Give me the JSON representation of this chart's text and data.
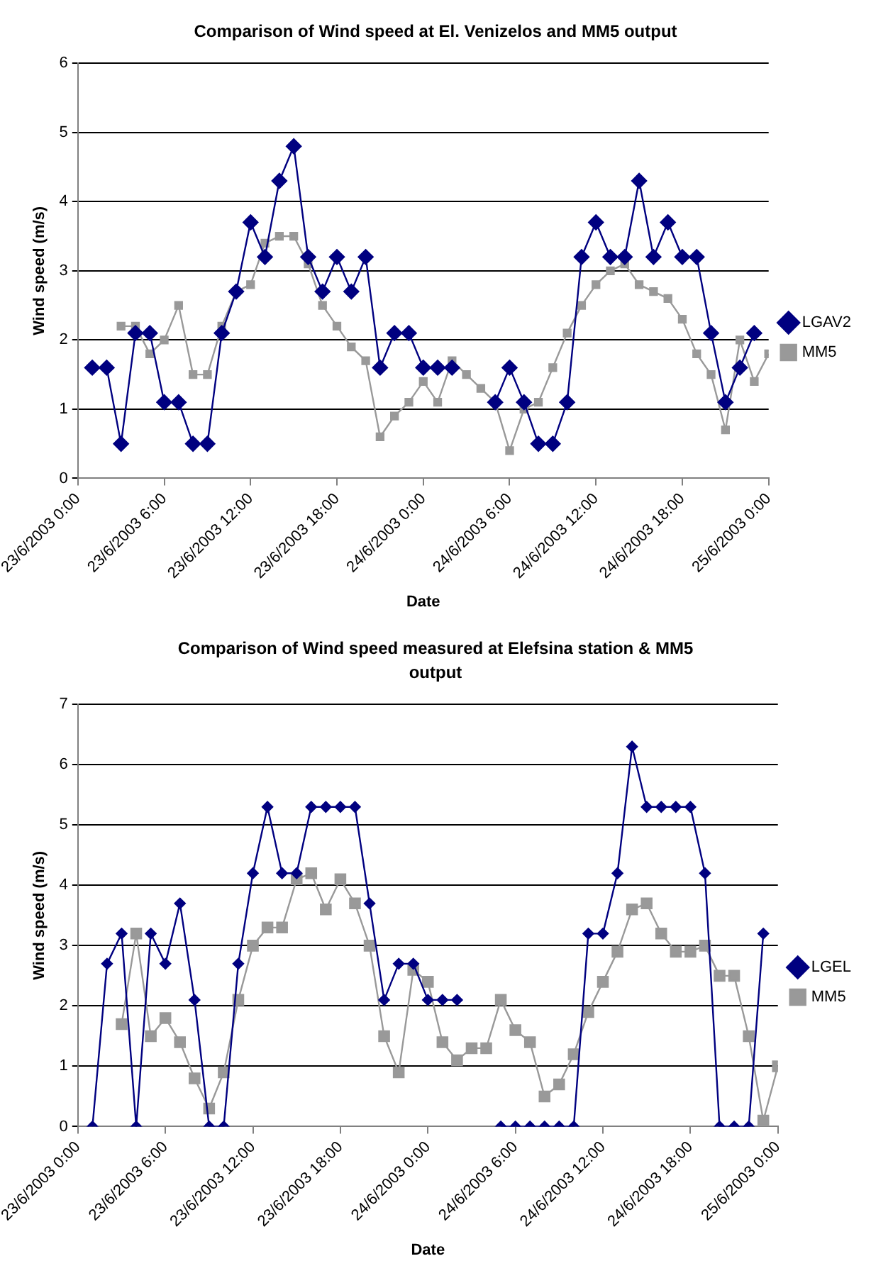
{
  "chart_data": [
    {
      "type": "line",
      "title": "Comparison of Wind speed at El. Venizelos and MM5 output",
      "xlabel": "Date",
      "ylabel": "Wind speed (m/s)",
      "x": [
        "2003-06-23T01:00",
        "2003-06-23T02:00",
        "2003-06-23T03:00",
        "2003-06-23T04:00",
        "2003-06-23T05:00",
        "2003-06-23T06:00",
        "2003-06-23T07:00",
        "2003-06-23T08:00",
        "2003-06-23T09:00",
        "2003-06-23T10:00",
        "2003-06-23T11:00",
        "2003-06-23T12:00",
        "2003-06-23T13:00",
        "2003-06-23T14:00",
        "2003-06-23T15:00",
        "2003-06-23T16:00",
        "2003-06-23T17:00",
        "2003-06-23T18:00",
        "2003-06-23T19:00",
        "2003-06-23T20:00",
        "2003-06-23T21:00",
        "2003-06-23T22:00",
        "2003-06-23T23:00",
        "2003-06-24T00:00",
        "2003-06-24T01:00",
        "2003-06-24T02:00",
        "2003-06-24T03:00",
        "2003-06-24T04:00",
        "2003-06-24T05:00",
        "2003-06-24T06:00",
        "2003-06-24T07:00",
        "2003-06-24T08:00",
        "2003-06-24T09:00",
        "2003-06-24T10:00",
        "2003-06-24T11:00",
        "2003-06-24T12:00",
        "2003-06-24T13:00",
        "2003-06-24T14:00",
        "2003-06-24T15:00",
        "2003-06-24T16:00",
        "2003-06-24T17:00",
        "2003-06-24T18:00",
        "2003-06-24T19:00",
        "2003-06-24T20:00",
        "2003-06-24T21:00",
        "2003-06-24T22:00",
        "2003-06-24T23:00",
        "2003-06-25T00:00"
      ],
      "xlim": [
        "2003-06-23T00:00",
        "2003-06-25T00:00"
      ],
      "xticks": [
        {
          "value": "2003-06-23T00:00",
          "label": "23/6/2003 0:00"
        },
        {
          "value": "2003-06-23T06:00",
          "label": "23/6/2003 6:00"
        },
        {
          "value": "2003-06-23T12:00",
          "label": "23/6/2003 12:00"
        },
        {
          "value": "2003-06-23T18:00",
          "label": "23/6/2003 18:00"
        },
        {
          "value": "2003-06-24T00:00",
          "label": "24/6/2003 0:00"
        },
        {
          "value": "2003-06-24T06:00",
          "label": "24/6/2003 6:00"
        },
        {
          "value": "2003-06-24T12:00",
          "label": "24/6/2003 12:00"
        },
        {
          "value": "2003-06-24T18:00",
          "label": "24/6/2003 18:00"
        },
        {
          "value": "2003-06-25T00:00",
          "label": "25/6/2003 0:00"
        }
      ],
      "ylim": [
        0,
        6
      ],
      "yticks": [
        0,
        1,
        2,
        3,
        4,
        5,
        6
      ],
      "grid": "y",
      "legend": "right",
      "series": [
        {
          "name": "LGAV2",
          "color": "#000080",
          "marker": "diamond",
          "values": [
            1.6,
            1.6,
            0.5,
            2.1,
            2.1,
            1.1,
            1.1,
            0.5,
            0.5,
            2.1,
            2.7,
            3.7,
            3.2,
            4.3,
            4.8,
            3.2,
            2.7,
            3.2,
            2.7,
            3.2,
            1.6,
            2.1,
            2.1,
            1.6,
            1.6,
            1.6,
            null,
            null,
            1.1,
            1.6,
            1.1,
            0.5,
            0.5,
            1.1,
            3.2,
            3.7,
            3.2,
            3.2,
            4.3,
            3.2,
            3.7,
            3.2,
            3.2,
            2.1,
            1.1,
            1.6,
            2.1,
            null
          ]
        },
        {
          "name": "MM5",
          "color": "#999999",
          "marker": "square",
          "values": [
            null,
            null,
            2.2,
            2.2,
            1.8,
            2.0,
            2.5,
            1.5,
            1.5,
            2.2,
            2.7,
            2.8,
            3.4,
            3.5,
            3.5,
            3.1,
            2.5,
            2.2,
            1.9,
            1.7,
            0.6,
            0.9,
            1.1,
            1.4,
            1.1,
            1.7,
            1.5,
            1.3,
            1.1,
            0.4,
            1.0,
            1.1,
            1.6,
            2.1,
            2.5,
            2.8,
            3.0,
            3.1,
            2.8,
            2.7,
            2.6,
            2.3,
            1.8,
            1.5,
            0.7,
            2.0,
            1.4,
            1.8
          ]
        }
      ]
    },
    {
      "type": "line",
      "title": "Comparison of Wind speed measured at Elefsina station & MM5 output",
      "xlabel": "Date",
      "ylabel": "Wind speed (m/s)",
      "x": [
        "2003-06-23T01:00",
        "2003-06-23T02:00",
        "2003-06-23T03:00",
        "2003-06-23T04:00",
        "2003-06-23T05:00",
        "2003-06-23T06:00",
        "2003-06-23T07:00",
        "2003-06-23T08:00",
        "2003-06-23T09:00",
        "2003-06-23T10:00",
        "2003-06-23T11:00",
        "2003-06-23T12:00",
        "2003-06-23T13:00",
        "2003-06-23T14:00",
        "2003-06-23T15:00",
        "2003-06-23T16:00",
        "2003-06-23T17:00",
        "2003-06-23T18:00",
        "2003-06-23T19:00",
        "2003-06-23T20:00",
        "2003-06-23T21:00",
        "2003-06-23T22:00",
        "2003-06-23T23:00",
        "2003-06-24T00:00",
        "2003-06-24T01:00",
        "2003-06-24T02:00",
        "2003-06-24T03:00",
        "2003-06-24T04:00",
        "2003-06-24T05:00",
        "2003-06-24T06:00",
        "2003-06-24T07:00",
        "2003-06-24T08:00",
        "2003-06-24T09:00",
        "2003-06-24T10:00",
        "2003-06-24T11:00",
        "2003-06-24T12:00",
        "2003-06-24T13:00",
        "2003-06-24T14:00",
        "2003-06-24T15:00",
        "2003-06-24T16:00",
        "2003-06-24T17:00",
        "2003-06-24T18:00",
        "2003-06-24T19:00",
        "2003-06-24T20:00",
        "2003-06-24T21:00",
        "2003-06-24T22:00",
        "2003-06-24T23:00",
        "2003-06-25T00:00"
      ],
      "xlim": [
        "2003-06-23T00:00",
        "2003-06-25T00:00"
      ],
      "xticks": [
        {
          "value": "2003-06-23T00:00",
          "label": "23/6/2003 0:00"
        },
        {
          "value": "2003-06-23T06:00",
          "label": "23/6/2003 6:00"
        },
        {
          "value": "2003-06-23T12:00",
          "label": "23/6/2003 12:00"
        },
        {
          "value": "2003-06-23T18:00",
          "label": "23/6/2003 18:00"
        },
        {
          "value": "2003-06-24T00:00",
          "label": "24/6/2003 0:00"
        },
        {
          "value": "2003-06-24T06:00",
          "label": "24/6/2003 6:00"
        },
        {
          "value": "2003-06-24T12:00",
          "label": "24/6/2003 12:00"
        },
        {
          "value": "2003-06-24T18:00",
          "label": "24/6/2003 18:00"
        },
        {
          "value": "2003-06-25T00:00",
          "label": "25/6/2003 0:00"
        }
      ],
      "ylim": [
        0,
        7
      ],
      "yticks": [
        0,
        1,
        2,
        3,
        4,
        5,
        6,
        7
      ],
      "grid": "y",
      "legend": "right",
      "series": [
        {
          "name": "LGEL",
          "color": "#000080",
          "marker": "diamond",
          "values": [
            0,
            2.7,
            3.2,
            0,
            3.2,
            2.7,
            3.7,
            2.1,
            0,
            0,
            2.7,
            4.2,
            5.3,
            4.2,
            4.2,
            5.3,
            5.3,
            5.3,
            5.3,
            3.7,
            2.1,
            2.7,
            2.7,
            2.1,
            2.1,
            2.1,
            null,
            null,
            0,
            0,
            0,
            0,
            0,
            0,
            3.2,
            3.2,
            4.2,
            6.3,
            5.3,
            5.3,
            5.3,
            5.3,
            4.2,
            0,
            0,
            0,
            3.2,
            null
          ]
        },
        {
          "name": "MM5",
          "color": "#999999",
          "marker": "square",
          "values": [
            null,
            null,
            1.7,
            3.2,
            1.5,
            1.8,
            1.4,
            0.8,
            0.3,
            0.9,
            2.1,
            3.0,
            3.3,
            3.3,
            4.1,
            4.2,
            3.6,
            4.1,
            3.7,
            3.0,
            1.5,
            0.9,
            2.6,
            2.4,
            1.4,
            1.1,
            1.3,
            1.3,
            2.1,
            1.6,
            1.4,
            0.5,
            0.7,
            1.2,
            1.9,
            2.4,
            2.9,
            3.6,
            3.7,
            3.2,
            2.9,
            2.9,
            3.0,
            2.5,
            2.5,
            1.5,
            0.1,
            1.0
          ]
        }
      ]
    }
  ]
}
